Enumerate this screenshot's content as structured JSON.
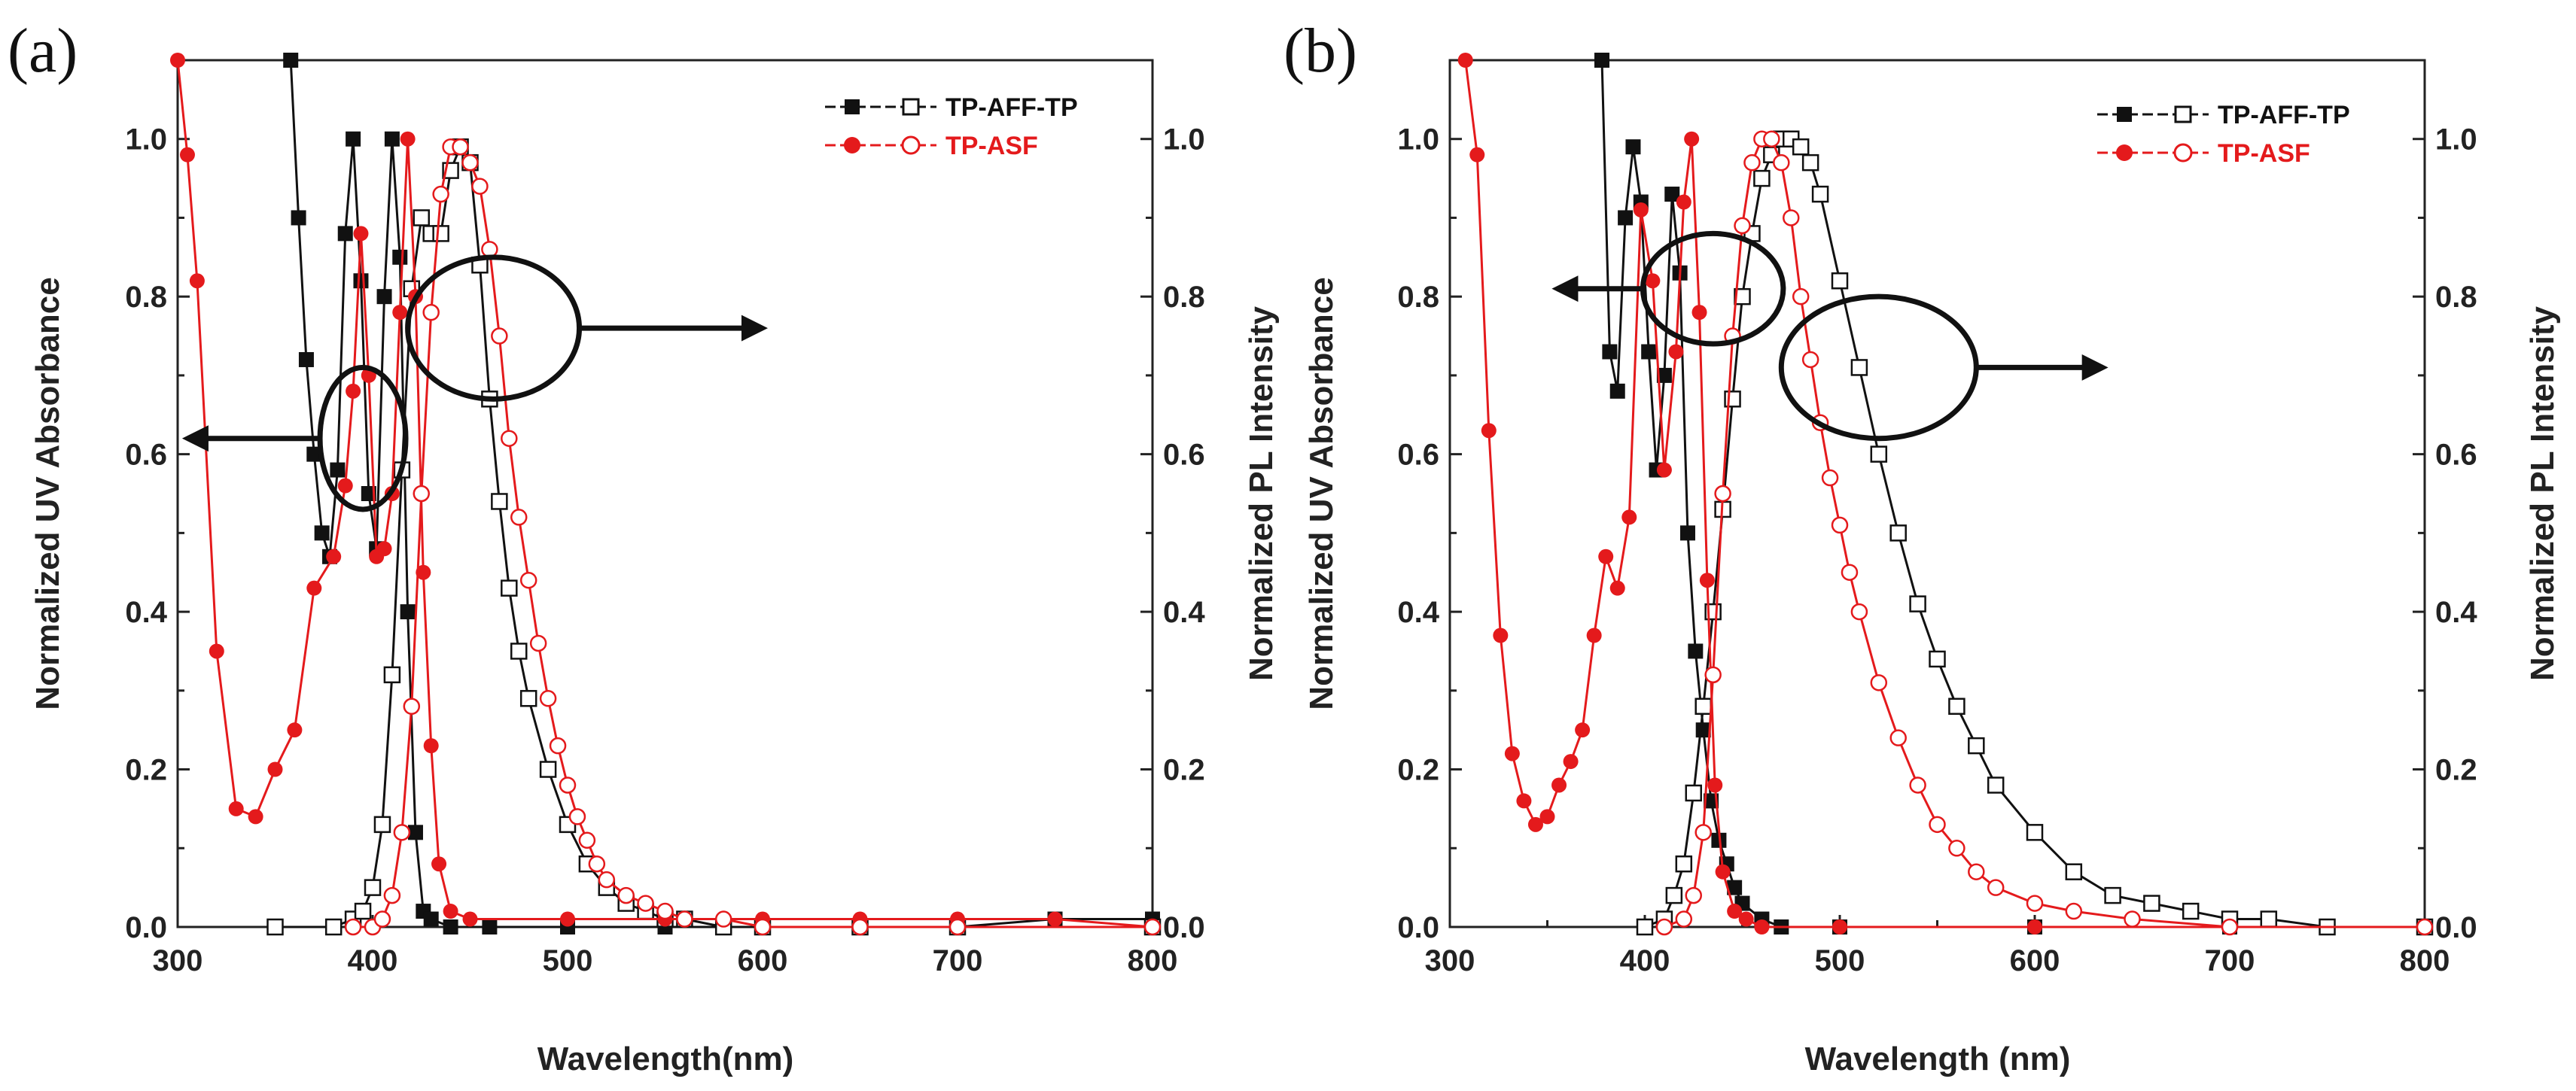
{
  "colors": {
    "aff": "#111111",
    "asf": "#e41a1c",
    "axis": "#222222"
  },
  "chart_data": [
    {
      "panel_label": "(a)",
      "type": "line",
      "xlabel": "Wavelength(nm)",
      "ylabel_left": "Normalized UV Absorbance",
      "ylabel_right": "Normalized PL Intensity",
      "xlim": [
        300,
        800
      ],
      "ylim": [
        0,
        1.1
      ],
      "x_ticks": [
        "300",
        "400",
        "500",
        "600",
        "700",
        "800"
      ],
      "y_ticks_left": [
        "0.0",
        "0.2",
        "0.4",
        "0.6",
        "0.8",
        "1.0"
      ],
      "y_ticks_right": [
        "0.0",
        "0.2",
        "0.4",
        "0.6",
        "0.8",
        "1.0"
      ],
      "legend": {
        "placement": "top-right",
        "entries": [
          "TP-AFF-TP",
          "TP-ASF"
        ]
      },
      "annotations": [
        {
          "shape": "ellipse",
          "cx": 395,
          "cy": 0.62,
          "rx": 22,
          "ry": 0.09,
          "arrow_to": [
            305,
            0.62
          ],
          "axis": "left"
        },
        {
          "shape": "ellipse",
          "cx": 462,
          "cy": 0.76,
          "rx": 44,
          "ry": 0.09,
          "arrow_to": [
            600,
            0.76
          ],
          "axis": "right"
        }
      ],
      "series": [
        {
          "name": "TP-AFF-TP",
          "kind": "absorption",
          "axis": "left",
          "marker": "square-filled",
          "x": [
            358,
            362,
            366,
            370,
            374,
            378,
            382,
            386,
            390,
            394,
            398,
            402,
            406,
            410,
            414,
            418,
            422,
            426,
            430,
            440,
            460,
            500,
            550,
            600,
            650,
            700,
            750,
            800
          ],
          "y": [
            1.1,
            0.9,
            0.72,
            0.6,
            0.5,
            0.47,
            0.58,
            0.88,
            1.0,
            0.82,
            0.55,
            0.48,
            0.8,
            1.0,
            0.85,
            0.4,
            0.12,
            0.02,
            0.01,
            0.0,
            0.0,
            0.0,
            0.0,
            0.0,
            0.0,
            0.0,
            0.01,
            0.01
          ]
        },
        {
          "name": "TP-AFF-TP",
          "kind": "emission",
          "axis": "right",
          "marker": "square-open",
          "x": [
            350,
            380,
            390,
            395,
            400,
            405,
            410,
            415,
            420,
            425,
            430,
            435,
            440,
            445,
            450,
            455,
            460,
            465,
            470,
            475,
            480,
            490,
            500,
            510,
            520,
            530,
            540,
            550,
            560,
            580,
            600,
            650,
            700,
            800
          ],
          "y": [
            0.0,
            0.0,
            0.01,
            0.02,
            0.05,
            0.13,
            0.32,
            0.58,
            0.81,
            0.9,
            0.88,
            0.88,
            0.96,
            0.99,
            0.97,
            0.84,
            0.67,
            0.54,
            0.43,
            0.35,
            0.29,
            0.2,
            0.13,
            0.08,
            0.05,
            0.03,
            0.02,
            0.01,
            0.01,
            0.0,
            0.0,
            0.0,
            0.0,
            0.0
          ]
        },
        {
          "name": "TP-ASF",
          "kind": "absorption",
          "axis": "left",
          "marker": "circle-filled",
          "x": [
            300,
            305,
            310,
            320,
            330,
            340,
            350,
            360,
            370,
            380,
            386,
            390,
            394,
            398,
            402,
            406,
            410,
            414,
            418,
            422,
            426,
            430,
            434,
            440,
            450,
            500,
            550,
            600,
            650,
            700,
            750,
            800
          ],
          "y": [
            1.1,
            0.98,
            0.82,
            0.35,
            0.15,
            0.14,
            0.2,
            0.25,
            0.43,
            0.47,
            0.56,
            0.68,
            0.88,
            0.7,
            0.47,
            0.48,
            0.55,
            0.78,
            1.0,
            0.8,
            0.45,
            0.23,
            0.08,
            0.02,
            0.01,
            0.01,
            0.01,
            0.01,
            0.01,
            0.01,
            0.01,
            0.0
          ]
        },
        {
          "name": "TP-ASF",
          "kind": "emission",
          "axis": "right",
          "marker": "circle-open",
          "x": [
            390,
            400,
            405,
            410,
            415,
            420,
            425,
            430,
            435,
            440,
            445,
            450,
            455,
            460,
            465,
            470,
            475,
            480,
            485,
            490,
            495,
            500,
            505,
            510,
            515,
            520,
            530,
            540,
            550,
            560,
            580,
            600,
            650,
            700,
            800
          ],
          "y": [
            0.0,
            0.0,
            0.01,
            0.04,
            0.12,
            0.28,
            0.55,
            0.78,
            0.93,
            0.99,
            0.99,
            0.97,
            0.94,
            0.86,
            0.75,
            0.62,
            0.52,
            0.44,
            0.36,
            0.29,
            0.23,
            0.18,
            0.14,
            0.11,
            0.08,
            0.06,
            0.04,
            0.03,
            0.02,
            0.01,
            0.01,
            0.0,
            0.0,
            0.0,
            0.0
          ]
        }
      ]
    },
    {
      "panel_label": "(b)",
      "type": "line",
      "xlabel": "Wavelength (nm)",
      "ylabel_left": "Normalized UV Absorbance",
      "ylabel_right": "Normalized PL Intensity",
      "xlim": [
        300,
        800
      ],
      "ylim": [
        0,
        1.1
      ],
      "x_ticks": [
        "300",
        "400",
        "500",
        "600",
        "700",
        "800"
      ],
      "y_ticks_left": [
        "0.0",
        "0.2",
        "0.4",
        "0.6",
        "0.8",
        "1.0"
      ],
      "y_ticks_right": [
        "0.0",
        "0.2",
        "0.4",
        "0.6",
        "0.8",
        "1.0"
      ],
      "legend": {
        "placement": "top-right",
        "entries": [
          "TP-AFF-TP",
          "TP-ASF"
        ]
      },
      "annotations": [
        {
          "shape": "ellipse",
          "cx": 435,
          "cy": 0.81,
          "rx": 36,
          "ry": 0.07,
          "arrow_to": [
            355,
            0.81
          ],
          "axis": "left"
        },
        {
          "shape": "ellipse",
          "cx": 520,
          "cy": 0.71,
          "rx": 50,
          "ry": 0.09,
          "arrow_to": [
            635,
            0.71
          ],
          "axis": "right"
        }
      ],
      "series": [
        {
          "name": "TP-AFF-TP",
          "kind": "absorption",
          "axis": "left",
          "marker": "square-filled",
          "x": [
            378,
            382,
            386,
            390,
            394,
            398,
            402,
            406,
            410,
            414,
            418,
            422,
            426,
            430,
            434,
            438,
            442,
            446,
            450,
            460,
            470,
            500,
            600,
            700,
            800
          ],
          "y": [
            1.1,
            0.73,
            0.68,
            0.9,
            0.99,
            0.92,
            0.73,
            0.58,
            0.7,
            0.93,
            0.83,
            0.5,
            0.35,
            0.25,
            0.16,
            0.11,
            0.08,
            0.05,
            0.03,
            0.01,
            0.0,
            0.0,
            0.0,
            0.0,
            0.0
          ]
        },
        {
          "name": "TP-AFF-TP",
          "kind": "emission",
          "axis": "right",
          "marker": "square-open",
          "x": [
            400,
            410,
            415,
            420,
            425,
            430,
            435,
            440,
            445,
            450,
            455,
            460,
            465,
            470,
            475,
            480,
            485,
            490,
            500,
            510,
            520,
            530,
            540,
            550,
            560,
            570,
            580,
            600,
            620,
            640,
            660,
            680,
            700,
            720,
            750,
            800
          ],
          "y": [
            0.0,
            0.01,
            0.04,
            0.08,
            0.17,
            0.28,
            0.4,
            0.53,
            0.67,
            0.8,
            0.88,
            0.95,
            0.98,
            1.0,
            1.0,
            0.99,
            0.97,
            0.93,
            0.82,
            0.71,
            0.6,
            0.5,
            0.41,
            0.34,
            0.28,
            0.23,
            0.18,
            0.12,
            0.07,
            0.04,
            0.03,
            0.02,
            0.01,
            0.01,
            0.0,
            0.0
          ]
        },
        {
          "name": "TP-ASF",
          "kind": "absorption",
          "axis": "left",
          "marker": "circle-filled",
          "x": [
            308,
            314,
            320,
            326,
            332,
            338,
            344,
            350,
            356,
            362,
            368,
            374,
            380,
            386,
            392,
            398,
            404,
            410,
            416,
            420,
            424,
            428,
            432,
            436,
            440,
            446,
            452,
            460,
            500,
            600,
            700,
            800
          ],
          "y": [
            1.1,
            0.98,
            0.63,
            0.37,
            0.22,
            0.16,
            0.13,
            0.14,
            0.18,
            0.21,
            0.25,
            0.37,
            0.47,
            0.43,
            0.52,
            0.91,
            0.82,
            0.58,
            0.73,
            0.92,
            1.0,
            0.78,
            0.44,
            0.18,
            0.07,
            0.02,
            0.01,
            0.0,
            0.0,
            0.0,
            0.0,
            0.0
          ]
        },
        {
          "name": "TP-ASF",
          "kind": "emission",
          "axis": "right",
          "marker": "circle-open",
          "x": [
            410,
            420,
            425,
            430,
            435,
            440,
            445,
            450,
            455,
            460,
            465,
            470,
            475,
            480,
            485,
            490,
            495,
            500,
            505,
            510,
            520,
            530,
            540,
            550,
            560,
            570,
            580,
            600,
            620,
            650,
            700,
            800
          ],
          "y": [
            0.0,
            0.01,
            0.04,
            0.12,
            0.32,
            0.55,
            0.75,
            0.89,
            0.97,
            1.0,
            1.0,
            0.97,
            0.9,
            0.8,
            0.72,
            0.64,
            0.57,
            0.51,
            0.45,
            0.4,
            0.31,
            0.24,
            0.18,
            0.13,
            0.1,
            0.07,
            0.05,
            0.03,
            0.02,
            0.01,
            0.0,
            0.0
          ]
        }
      ]
    }
  ]
}
